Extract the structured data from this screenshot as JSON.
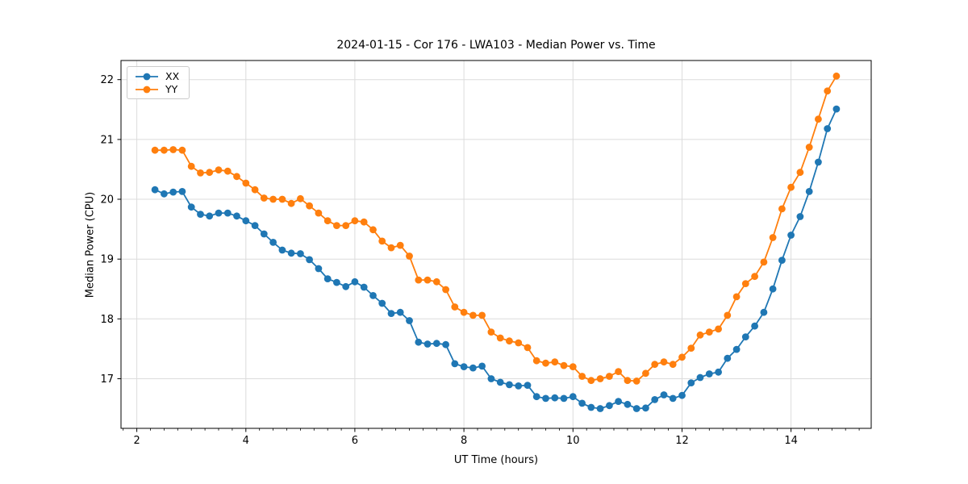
{
  "figure": {
    "title": "2024-01-15 - Cor 176 - LWA103 - Median Power vs. Time",
    "xlabel": "UT Time (hours)",
    "ylabel": "Median Power (CPU)"
  },
  "legend": {
    "items": [
      {
        "label": "XX",
        "color": "#1f77b4"
      },
      {
        "label": "YY",
        "color": "#ff7f0e"
      }
    ]
  },
  "colors": {
    "series_xx": "#1f77b4",
    "series_yy": "#ff7f0e",
    "grid": "#dcdcdc",
    "spine": "#000000",
    "background": "#ffffff"
  },
  "chart_data": {
    "type": "line",
    "title": "2024-01-15 - Cor 176 - LWA103 - Median Power vs. Time",
    "xlabel": "UT Time (hours)",
    "ylabel": "Median Power (CPU)",
    "grid": true,
    "legend_position": "upper left",
    "marker": "o",
    "xlim": [
      1.71,
      15.47
    ],
    "ylim": [
      16.17,
      22.32
    ],
    "xticks": [
      2,
      4,
      6,
      8,
      10,
      12,
      14
    ],
    "yticks": [
      17,
      18,
      19,
      20,
      21,
      22
    ],
    "minor_xtick_step": 0.25,
    "x": [
      2.333,
      2.5,
      2.667,
      2.833,
      3.0,
      3.167,
      3.333,
      3.5,
      3.667,
      3.833,
      4.0,
      4.167,
      4.333,
      4.5,
      4.667,
      4.833,
      5.0,
      5.167,
      5.333,
      5.5,
      5.667,
      5.833,
      6.0,
      6.167,
      6.333,
      6.5,
      6.667,
      6.833,
      7.0,
      7.167,
      7.333,
      7.5,
      7.667,
      7.833,
      8.0,
      8.167,
      8.333,
      8.5,
      8.667,
      8.833,
      9.0,
      9.167,
      9.333,
      9.5,
      9.667,
      9.833,
      10.0,
      10.167,
      10.333,
      10.5,
      10.667,
      10.833,
      11.0,
      11.167,
      11.333,
      11.5,
      11.667,
      11.833,
      12.0,
      12.167,
      12.333,
      12.5,
      12.667,
      12.833,
      13.0,
      13.167,
      13.333,
      13.5,
      13.667,
      13.833,
      14.0,
      14.167,
      14.333,
      14.5,
      14.667,
      14.833
    ],
    "series": [
      {
        "name": "XX",
        "color": "#1f77b4",
        "values": [
          20.16,
          20.09,
          20.12,
          20.13,
          19.87,
          19.75,
          19.72,
          19.77,
          19.77,
          19.72,
          19.64,
          19.56,
          19.42,
          19.28,
          19.15,
          19.1,
          19.09,
          18.99,
          18.84,
          18.67,
          18.61,
          18.54,
          18.62,
          18.53,
          18.39,
          18.26,
          18.09,
          18.11,
          17.97,
          17.61,
          17.58,
          17.59,
          17.57,
          17.25,
          17.2,
          17.18,
          17.21,
          17.0,
          16.94,
          16.9,
          16.88,
          16.89,
          16.7,
          16.67,
          16.68,
          16.67,
          16.7,
          16.59,
          16.52,
          16.5,
          16.55,
          16.62,
          16.57,
          16.5,
          16.51,
          16.65,
          16.73,
          16.67,
          16.72,
          16.93,
          17.02,
          17.08,
          17.11,
          17.34,
          17.49,
          17.7,
          17.88,
          18.11,
          18.5,
          18.98,
          19.4,
          19.71,
          20.13,
          20.62,
          21.18,
          21.51
        ]
      },
      {
        "name": "YY",
        "color": "#ff7f0e",
        "values": [
          20.82,
          20.82,
          20.83,
          20.82,
          20.55,
          20.44,
          20.45,
          20.49,
          20.47,
          20.38,
          20.27,
          20.16,
          20.02,
          20.0,
          20.0,
          19.93,
          20.01,
          19.89,
          19.77,
          19.64,
          19.56,
          19.56,
          19.64,
          19.62,
          19.49,
          19.3,
          19.19,
          19.23,
          19.05,
          18.65,
          18.65,
          18.62,
          18.49,
          18.2,
          18.11,
          18.06,
          18.06,
          17.78,
          17.68,
          17.63,
          17.6,
          17.52,
          17.3,
          17.26,
          17.28,
          17.22,
          17.2,
          17.04,
          16.97,
          17.0,
          17.04,
          17.12,
          16.97,
          16.96,
          17.09,
          17.24,
          17.28,
          17.24,
          17.36,
          17.51,
          17.73,
          17.78,
          17.83,
          18.06,
          18.37,
          18.59,
          18.71,
          18.95,
          19.36,
          19.84,
          20.2,
          20.45,
          20.87,
          21.34,
          21.81,
          22.06
        ]
      }
    ]
  }
}
